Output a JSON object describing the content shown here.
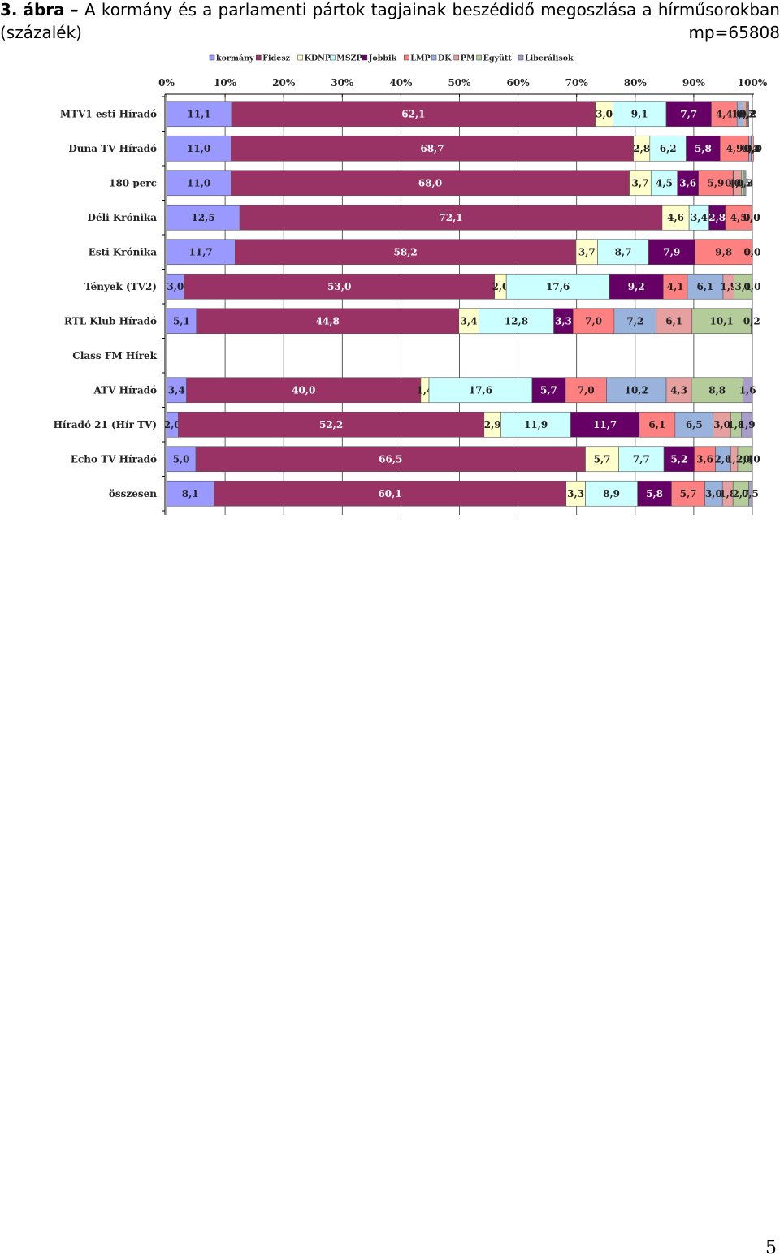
{
  "caption": {
    "number": "3. ábra",
    "dash": "–",
    "title_words": [
      "A",
      "kormány",
      "és",
      "a",
      "parlamenti",
      "pártok",
      "tagjainak",
      "beszédidő",
      "megoszlása",
      "a",
      "hírműsorokban"
    ],
    "unit": "(százalék)",
    "sample": "mp=65808"
  },
  "page_number": "5",
  "chart_data": {
    "type": "bar",
    "orientation": "horizontal",
    "stacked": "percent",
    "xlim": [
      0,
      100
    ],
    "x_ticks": [
      "0%",
      "10%",
      "20%",
      "30%",
      "40%",
      "50%",
      "60%",
      "70%",
      "80%",
      "90%",
      "100%"
    ],
    "legend_position": "top",
    "grid": true,
    "categories": [
      "MTV1 esti Híradó",
      "Duna TV Híradó",
      "180 perc",
      "Déli Krónika",
      "Esti Krónika",
      "Tények (TV2)",
      "RTL Klub Híradó",
      "Class FM Hírek",
      "ATV Híradó",
      "Híradó 21 (Hír TV)",
      "Echo TV Híradó",
      "összesen"
    ],
    "series": [
      {
        "name": "kormány",
        "color": "#9999ff",
        "values": [
          11.1,
          11.0,
          11.0,
          12.5,
          11.7,
          3.0,
          5.1,
          null,
          3.4,
          2.0,
          5.0,
          8.1
        ],
        "labels": [
          "11,1",
          "11,0",
          "11,0",
          "12,5",
          "11,7",
          "3,0",
          "5,1",
          "",
          "3,4",
          "2,0",
          "5,0",
          "8,1"
        ]
      },
      {
        "name": "Fidesz",
        "color": "#993366",
        "values": [
          62.1,
          68.7,
          68.0,
          72.1,
          58.2,
          53.0,
          44.8,
          null,
          40.0,
          52.2,
          66.5,
          60.1
        ],
        "labels": [
          "62,1",
          "68,7",
          "68,0",
          "72,1",
          "58,2",
          "53,0",
          "44,8",
          "",
          "40,0",
          "52,2",
          "66,5",
          "60,1"
        ]
      },
      {
        "name": "KDNP",
        "color": "#ffffcc",
        "values": [
          3.0,
          2.8,
          3.7,
          4.6,
          3.7,
          2.0,
          3.4,
          null,
          1.4,
          2.9,
          5.7,
          3.3
        ],
        "labels": [
          "3,0",
          "2,8",
          "3,7",
          "4,6",
          "3,7",
          "2,0",
          "3,4",
          "",
          "1,4",
          "2,9",
          "5,7",
          "3,3"
        ]
      },
      {
        "name": "MSZP",
        "color": "#ccffff",
        "values": [
          9.1,
          6.2,
          4.5,
          3.4,
          8.7,
          17.6,
          12.8,
          null,
          17.6,
          11.9,
          7.7,
          8.9
        ],
        "labels": [
          "9,1",
          "6,2",
          "4,5",
          "3,4",
          "8,7",
          "17,6",
          "12,8",
          "",
          "17,6",
          "11,9",
          "7,7",
          "8,9"
        ]
      },
      {
        "name": "Jobbik",
        "color": "#660066",
        "values": [
          7.7,
          5.8,
          3.6,
          2.8,
          7.9,
          9.2,
          3.3,
          null,
          5.7,
          11.7,
          5.2,
          5.8
        ],
        "labels": [
          "7,7",
          "5,8",
          "3,6",
          "2,8",
          "7,9",
          "9,2",
          "3,3",
          "",
          "5,7",
          "11,7",
          "5,2",
          "5,8"
        ]
      },
      {
        "name": "LMP",
        "color": "#ff8080",
        "values": [
          4.4,
          4.9,
          5.9,
          4.5,
          9.8,
          4.1,
          7.0,
          null,
          7.0,
          6.1,
          3.6,
          5.7
        ],
        "labels": [
          "4,4",
          "4,9",
          "5,9",
          "4,5",
          "9,8",
          "4,1",
          "7,0",
          "",
          "7,0",
          "6,1",
          "3,6",
          "5,7"
        ]
      },
      {
        "name": "DK",
        "color": "#99b3dd",
        "values": [
          1.0,
          0.4,
          0.1,
          0.0,
          0.0,
          6.1,
          7.2,
          null,
          10.2,
          6.5,
          2.6,
          3.0
        ],
        "labels": [
          "1,0",
          "0,4",
          "0,1",
          "0,0",
          "0,0",
          "6,1",
          "7,2",
          "",
          "10,2",
          "6,5",
          "2,6",
          "3,0"
        ]
      },
      {
        "name": "PM",
        "color": "#e6a0a0",
        "values": [
          0.6,
          0.4,
          1.3,
          0.0,
          0.0,
          1.9,
          6.1,
          null,
          4.3,
          3.0,
          1.2,
          1.8
        ],
        "labels": [
          "0,6",
          "0,4",
          "1,3",
          "0,0",
          "0,0",
          "1,9",
          "6,1",
          "",
          "4,3",
          "3,0",
          "1,2",
          "1,8"
        ]
      },
      {
        "name": "Együtt",
        "color": "#b3cc99",
        "values": [
          0.2,
          0.0,
          0.5,
          0.0,
          0.0,
          3.1,
          10.1,
          null,
          8.8,
          1.8,
          2.4,
          2.7
        ],
        "labels": [
          "0,2",
          "0,0",
          "0,5",
          "0,0",
          "0,0",
          "3,1",
          "10,1",
          "",
          "8,8",
          "1,8",
          "2,4",
          "2,7"
        ]
      },
      {
        "name": "Liberálisok",
        "color": "#a89cc8",
        "values": [
          0.2,
          0.0,
          0.3,
          0.0,
          0.0,
          0.0,
          0.2,
          null,
          1.6,
          1.9,
          0.0,
          0.5
        ],
        "labels": [
          "0,2",
          "0,0",
          "0,3",
          "0,0",
          "0,0",
          "0,0",
          "0,2",
          "",
          "1,6",
          "1,9",
          "0,0",
          "0,5"
        ]
      }
    ]
  }
}
